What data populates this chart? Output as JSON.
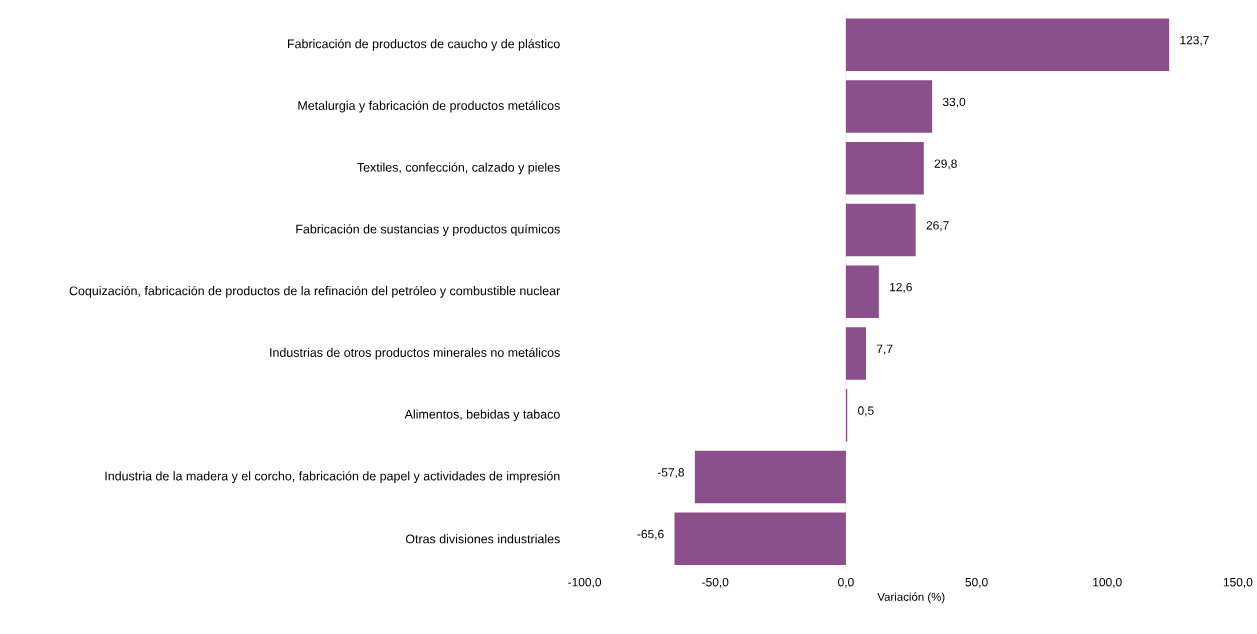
{
  "chart_data": {
    "type": "bar",
    "orientation": "horizontal",
    "xlabel": "Variación (%)",
    "categories": [
      "Fabricación de productos de caucho y de plástico",
      "Metalurgia y fabricación de productos metálicos",
      "Textiles, confección, calzado y pieles",
      "Fabricación de sustancias y productos químicos",
      "Coquización, fabricación de productos de la refinación del petróleo y combustible nuclear",
      "Industrias de otros productos minerales no metálicos",
      "Alimentos, bebidas y tabaco",
      "Industria de la madera y el corcho, fabricación de papel y actividades de impresión",
      "Otras divisiones industriales"
    ],
    "values": [
      123.7,
      33.0,
      29.8,
      26.7,
      12.6,
      7.7,
      0.5,
      -57.8,
      -65.6
    ],
    "value_labels": [
      "123,7",
      "33,0",
      "29,8",
      "26,7",
      "12,6",
      "7,7",
      "0,5",
      "-57,8",
      "-65,6"
    ],
    "color": "#8b4f8b",
    "xlim": [
      -100,
      150
    ],
    "xticks": [
      {
        "value": -100,
        "label": "-100,0"
      },
      {
        "value": -50,
        "label": "-50,0"
      },
      {
        "value": 0,
        "label": "0,0"
      },
      {
        "value": 50,
        "label": "50,0"
      },
      {
        "value": 100,
        "label": "100,0"
      },
      {
        "value": 150,
        "label": "150,0"
      }
    ]
  }
}
